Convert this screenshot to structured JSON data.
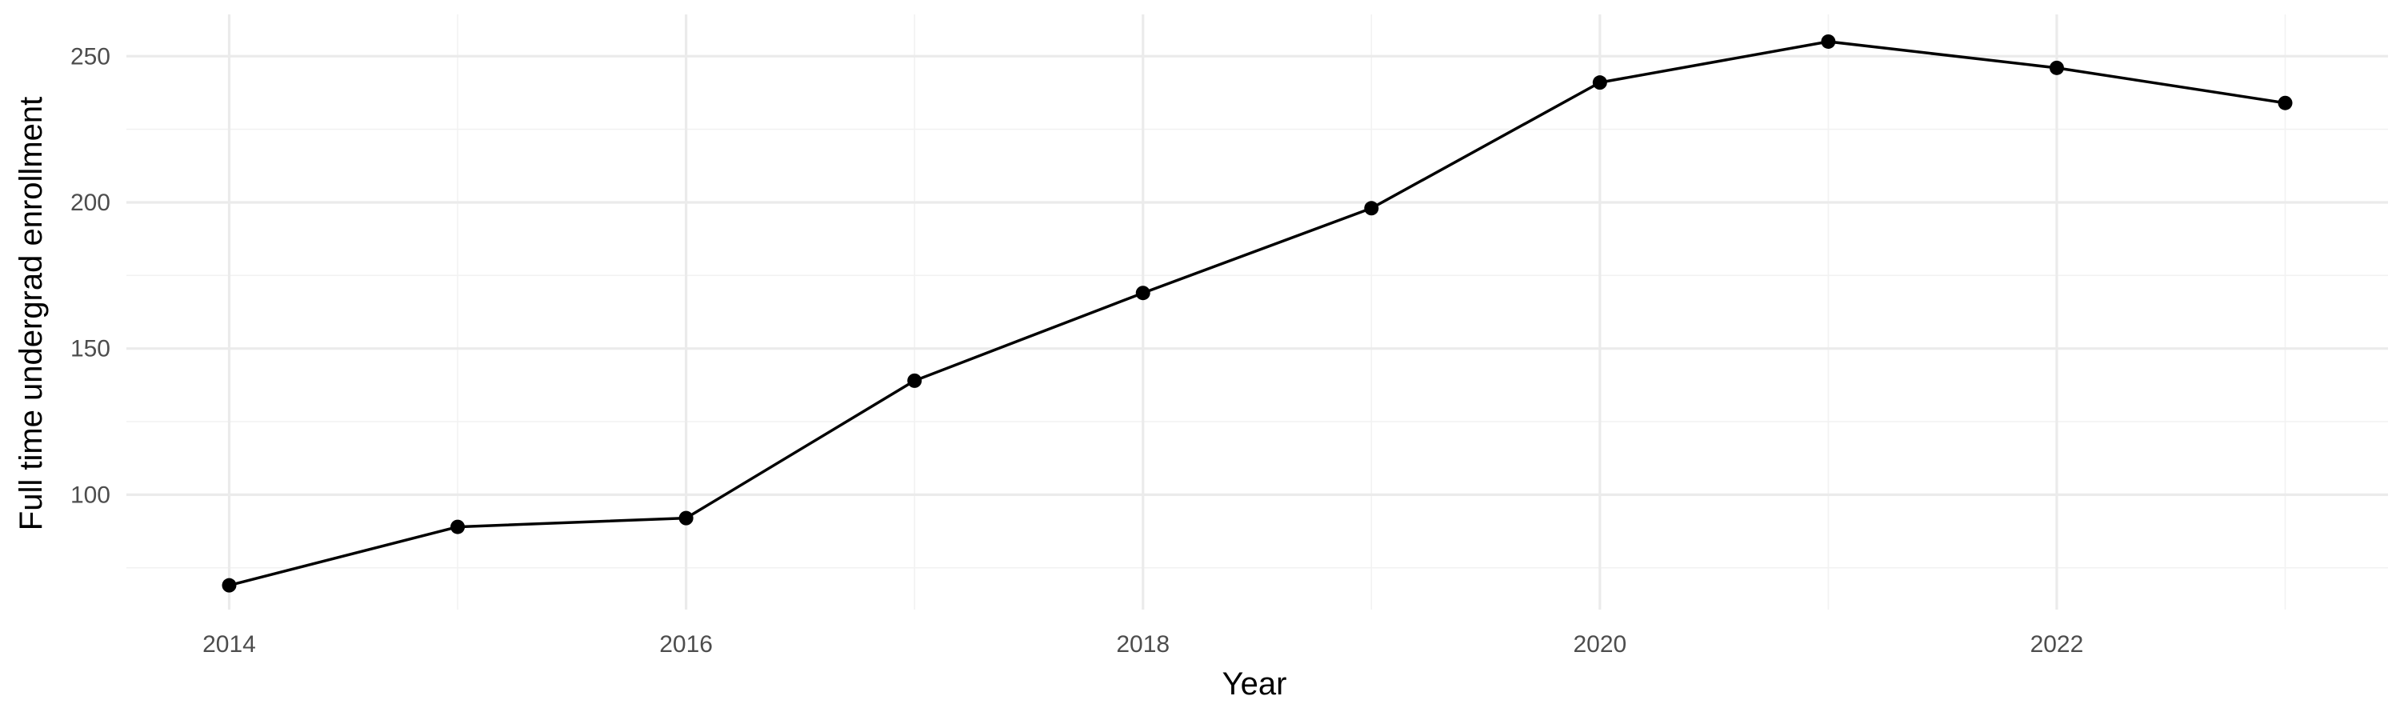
{
  "chart_data": {
    "type": "line",
    "title": "",
    "xlabel": "Year",
    "ylabel": "Full time undergrad enrollment",
    "x": [
      2014,
      2015,
      2016,
      2017,
      2018,
      2019,
      2020,
      2021,
      2022,
      2023
    ],
    "series": [
      {
        "values": [
          69,
          89,
          92,
          139,
          169,
          198,
          241,
          255,
          246,
          234
        ]
      }
    ],
    "xlim": [
      2013.55,
      2023.45
    ],
    "ylim": [
      60.7,
      264.3
    ],
    "x_ticks": [
      2014,
      2016,
      2018,
      2020,
      2022
    ],
    "x_tick_labels": [
      "2014",
      "2016",
      "2018",
      "2020",
      "2022"
    ],
    "y_ticks": [
      100,
      150,
      200,
      250
    ],
    "y_tick_labels": [
      "100",
      "150",
      "200",
      "250"
    ],
    "x_minor_ticks": [
      2015,
      2017,
      2019,
      2021,
      2023
    ],
    "y_minor_ticks": [
      75,
      125,
      175,
      225
    ],
    "grid": true,
    "legend": "none",
    "line_color": "#000000",
    "point_color": "#000000",
    "grid_color": "#ebebeb"
  }
}
